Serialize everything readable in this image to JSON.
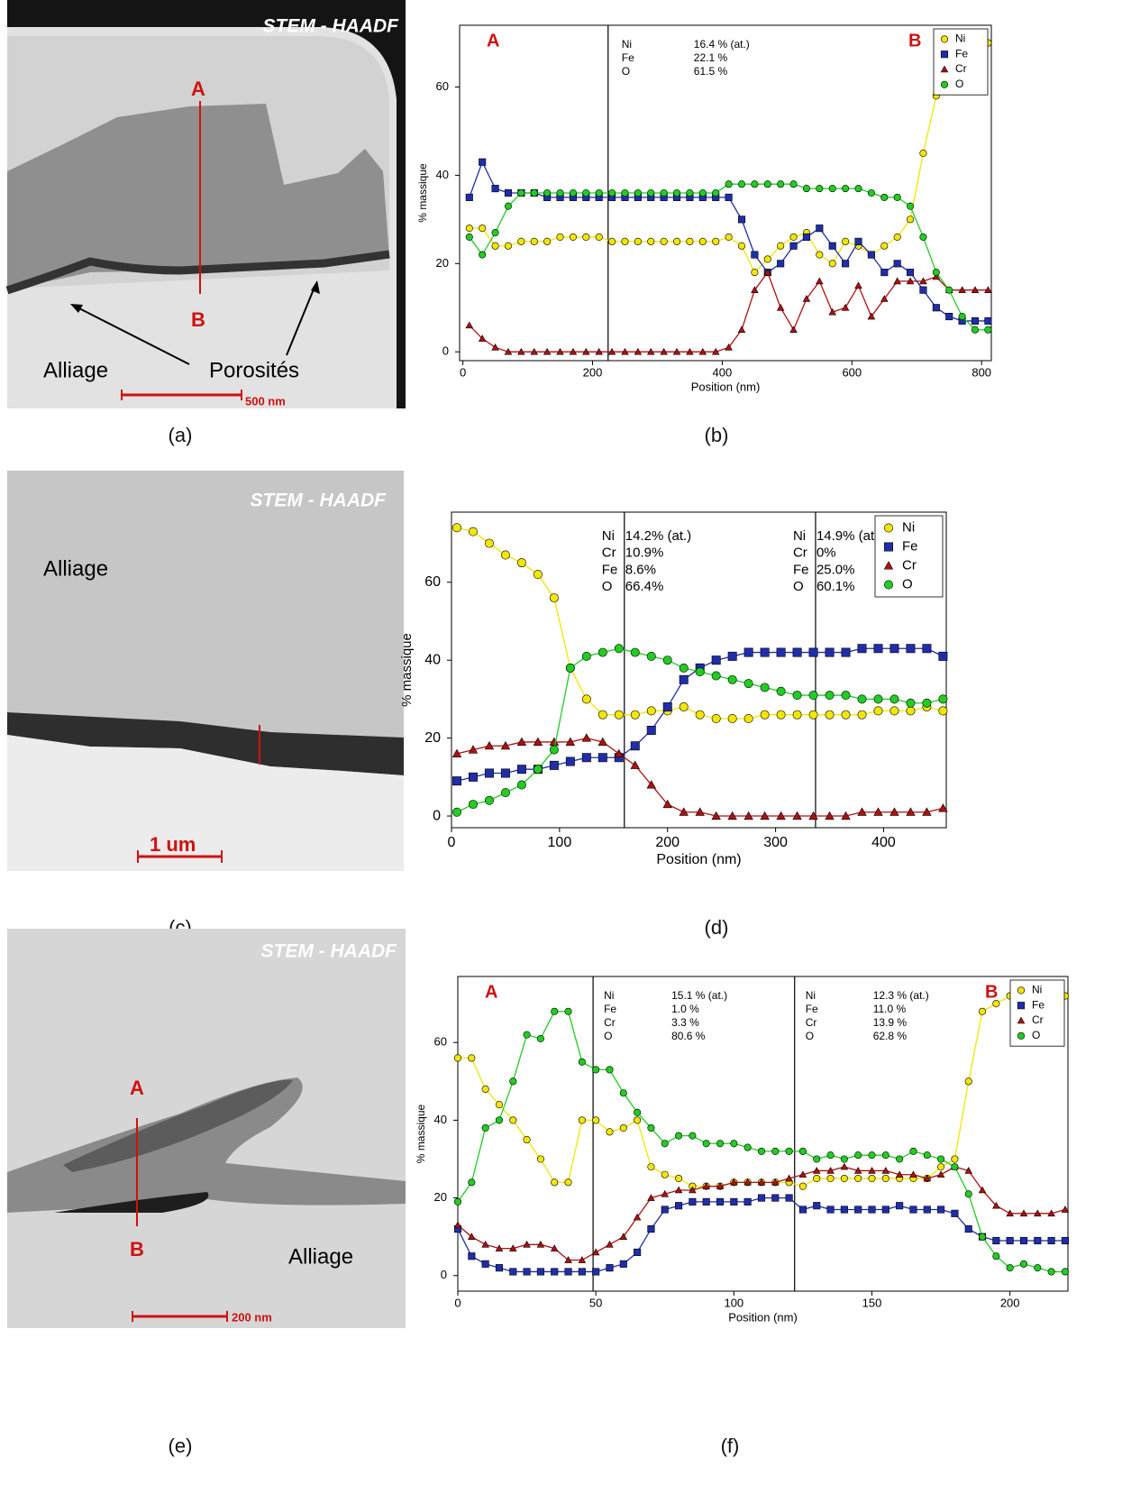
{
  "images": [
    {
      "caption": "(a)",
      "mode": "STEM - HAADF",
      "point_a": "A",
      "point_b": "B",
      "labels": [
        "Alliage",
        "Porosités"
      ],
      "scale_bar": "500 nm"
    },
    {
      "caption": "(c)",
      "mode": "STEM - HAADF",
      "labels": [
        "Alliage"
      ],
      "scale_bar": "1 um"
    },
    {
      "caption": "(e)",
      "mode": "STEM - HAADF",
      "point_a": "A",
      "point_b": "B",
      "labels": [
        "Alliage"
      ],
      "scale_bar": "200 nm"
    }
  ],
  "chart_data": [
    {
      "type": "line",
      "caption": "(b)",
      "x_label": "Position (nm)",
      "y_label": "% massique",
      "grid": false,
      "legend": "upper right",
      "end_labels": [
        "A",
        "B"
      ],
      "xlim": [
        -5,
        815
      ],
      "ylim": [
        -2,
        74
      ],
      "xticks": [
        0,
        200,
        400,
        600,
        800
      ],
      "yticks": [
        0,
        20,
        40,
        60
      ],
      "compositions": [
        {
          "x": 224,
          "lines": [
            [
              "Ni",
              "16.4 % (at.)"
            ],
            [
              "Fe",
              "22.1 %"
            ],
            [
              "O",
              "61.5 %"
            ]
          ]
        }
      ],
      "x": [
        10,
        30,
        50,
        70,
        90,
        110,
        130,
        150,
        170,
        190,
        210,
        230,
        250,
        270,
        290,
        310,
        330,
        350,
        370,
        390,
        410,
        430,
        450,
        470,
        490,
        510,
        530,
        550,
        570,
        590,
        610,
        630,
        650,
        670,
        690,
        710,
        730,
        750,
        770,
        790,
        810
      ],
      "series": [
        {
          "name": "Ni",
          "color": "#f2e600",
          "marker": "circle",
          "values": [
            28,
            28,
            24,
            24,
            25,
            25,
            25,
            26,
            26,
            26,
            26,
            25,
            25,
            25,
            25,
            25,
            25,
            25,
            25,
            25,
            26,
            24,
            18,
            21,
            24,
            26,
            27,
            22,
            20,
            25,
            24,
            22,
            24,
            26,
            30,
            45,
            58,
            65,
            69,
            70,
            70
          ]
        },
        {
          "name": "Fe",
          "color": "#1f2ea8",
          "marker": "square",
          "values": [
            35,
            43,
            37,
            36,
            36,
            36,
            35,
            35,
            35,
            35,
            35,
            35,
            35,
            35,
            35,
            35,
            35,
            35,
            35,
            35,
            35,
            30,
            22,
            18,
            20,
            24,
            26,
            28,
            24,
            20,
            25,
            22,
            18,
            20,
            18,
            14,
            10,
            8,
            7,
            7,
            7
          ]
        },
        {
          "name": "Cr",
          "color": "#b01010",
          "marker": "triangle",
          "values": [
            6,
            3,
            1,
            0,
            0,
            0,
            0,
            0,
            0,
            0,
            0,
            0,
            0,
            0,
            0,
            0,
            0,
            0,
            0,
            0,
            1,
            5,
            14,
            18,
            10,
            5,
            12,
            16,
            9,
            10,
            15,
            8,
            12,
            16,
            16,
            16,
            17,
            14,
            14,
            14,
            14
          ]
        },
        {
          "name": "O",
          "color": "#22cc22",
          "marker": "circle",
          "values": [
            26,
            22,
            27,
            33,
            36,
            36,
            36,
            36,
            36,
            36,
            36,
            36,
            36,
            36,
            36,
            36,
            36,
            36,
            36,
            36,
            38,
            38,
            38,
            38,
            38,
            38,
            37,
            37,
            37,
            37,
            37,
            36,
            35,
            35,
            33,
            26,
            18,
            14,
            8,
            5,
            5
          ]
        }
      ]
    },
    {
      "type": "line",
      "caption": "(d)",
      "x_label": "Position (nm)",
      "y_label": "% massique",
      "grid": false,
      "legend": "upper right",
      "xlim": [
        0,
        458
      ],
      "ylim": [
        -3,
        78
      ],
      "xticks": [
        0,
        100,
        200,
        300,
        400
      ],
      "yticks": [
        0,
        20,
        40,
        60
      ],
      "compositions": [
        {
          "x": 160,
          "lines": [
            [
              "Ni",
              "14.2% (at.)"
            ],
            [
              "Cr",
              "10.9%"
            ],
            [
              "Fe",
              "8.6%"
            ],
            [
              "O",
              "66.4%"
            ]
          ]
        },
        {
          "x": 337,
          "lines": [
            [
              "Ni",
              "14.9% (at.)"
            ],
            [
              "Cr",
              "0%"
            ],
            [
              "Fe",
              "25.0%"
            ],
            [
              "O",
              "60.1%"
            ]
          ]
        }
      ],
      "x": [
        5,
        20,
        35,
        50,
        65,
        80,
        95,
        110,
        125,
        140,
        155,
        170,
        185,
        200,
        215,
        230,
        245,
        260,
        275,
        290,
        305,
        320,
        335,
        350,
        365,
        380,
        395,
        410,
        425,
        440,
        455
      ],
      "series": [
        {
          "name": "Ni",
          "color": "#f2e600",
          "marker": "circle",
          "values": [
            74,
            73,
            70,
            67,
            65,
            62,
            56,
            38,
            30,
            26,
            26,
            26,
            27,
            27,
            28,
            26,
            25,
            25,
            25,
            26,
            26,
            26,
            26,
            26,
            26,
            26,
            27,
            27,
            27,
            28,
            27
          ]
        },
        {
          "name": "Fe",
          "color": "#1f2ea8",
          "marker": "square",
          "values": [
            9,
            10,
            11,
            11,
            12,
            12,
            13,
            14,
            15,
            15,
            15,
            18,
            22,
            28,
            35,
            38,
            40,
            41,
            42,
            42,
            42,
            42,
            42,
            42,
            42,
            43,
            43,
            43,
            43,
            43,
            41
          ]
        },
        {
          "name": "Cr",
          "color": "#b01010",
          "marker": "triangle",
          "values": [
            16,
            17,
            18,
            18,
            19,
            19,
            19,
            19,
            20,
            19,
            16,
            13,
            8,
            3,
            1,
            1,
            0,
            0,
            0,
            0,
            0,
            0,
            0,
            0,
            0,
            1,
            1,
            1,
            1,
            1,
            2
          ]
        },
        {
          "name": "O",
          "color": "#22cc22",
          "marker": "circle",
          "values": [
            1,
            3,
            4,
            6,
            8,
            12,
            17,
            38,
            41,
            42,
            43,
            42,
            41,
            40,
            38,
            37,
            36,
            35,
            34,
            33,
            32,
            31,
            31,
            31,
            31,
            30,
            30,
            30,
            29,
            29,
            30
          ]
        }
      ]
    },
    {
      "type": "line",
      "caption": "(f)",
      "x_label": "Position (nm)",
      "y_label": "% massique",
      "grid": false,
      "legend": "upper right",
      "end_labels": [
        "A",
        "B"
      ],
      "xlim": [
        0,
        221
      ],
      "ylim": [
        -4,
        77
      ],
      "xticks": [
        0,
        50,
        100,
        150,
        200
      ],
      "yticks": [
        0,
        20,
        40,
        60
      ],
      "compositions": [
        {
          "x": 49,
          "lines": [
            [
              "Ni",
              "15.1 % (at.)"
            ],
            [
              "Fe",
              "1.0 %"
            ],
            [
              "Cr",
              "3.3 %"
            ],
            [
              "O",
              "80.6 %"
            ]
          ]
        },
        {
          "x": 122,
          "lines": [
            [
              "Ni",
              "12.3 % (at.)"
            ],
            [
              "Fe",
              "11.0 %"
            ],
            [
              "Cr",
              "13.9 %"
            ],
            [
              "O",
              "62.8 %"
            ]
          ]
        }
      ],
      "x": [
        0,
        5,
        10,
        15,
        20,
        25,
        30,
        35,
        40,
        45,
        50,
        55,
        60,
        65,
        70,
        75,
        80,
        85,
        90,
        95,
        100,
        105,
        110,
        115,
        120,
        125,
        130,
        135,
        140,
        145,
        150,
        155,
        160,
        165,
        170,
        175,
        180,
        185,
        190,
        195,
        200,
        205,
        210,
        215,
        220
      ],
      "series": [
        {
          "name": "Ni",
          "color": "#f2e600",
          "marker": "circle",
          "values": [
            56,
            56,
            48,
            44,
            40,
            35,
            30,
            24,
            24,
            40,
            40,
            37,
            38,
            40,
            28,
            26,
            25,
            23,
            23,
            23,
            24,
            24,
            24,
            24,
            24,
            23,
            25,
            25,
            25,
            25,
            25,
            25,
            25,
            25,
            25,
            28,
            30,
            50,
            68,
            70,
            72,
            70,
            70,
            72,
            72
          ]
        },
        {
          "name": "Fe",
          "color": "#1f2ea8",
          "marker": "square",
          "values": [
            12,
            5,
            3,
            2,
            1,
            1,
            1,
            1,
            1,
            1,
            1,
            2,
            3,
            6,
            12,
            17,
            18,
            19,
            19,
            19,
            19,
            19,
            20,
            20,
            20,
            17,
            18,
            17,
            17,
            17,
            17,
            17,
            18,
            17,
            17,
            17,
            16,
            12,
            10,
            9,
            9,
            9,
            9,
            9,
            9
          ]
        },
        {
          "name": "Cr",
          "color": "#b01010",
          "marker": "triangle",
          "values": [
            13,
            10,
            8,
            7,
            7,
            8,
            8,
            7,
            4,
            4,
            6,
            8,
            10,
            15,
            20,
            21,
            22,
            22,
            23,
            23,
            24,
            24,
            24,
            24,
            25,
            26,
            27,
            27,
            28,
            27,
            27,
            27,
            26,
            26,
            25,
            26,
            28,
            27,
            22,
            18,
            16,
            16,
            16,
            16,
            17
          ]
        },
        {
          "name": "O",
          "color": "#22cc22",
          "marker": "circle",
          "values": [
            19,
            24,
            38,
            40,
            50,
            62,
            61,
            68,
            68,
            55,
            53,
            53,
            47,
            42,
            38,
            34,
            36,
            36,
            34,
            34,
            34,
            33,
            32,
            32,
            32,
            32,
            30,
            31,
            30,
            31,
            31,
            31,
            30,
            32,
            31,
            30,
            28,
            21,
            10,
            5,
            2,
            3,
            2,
            1,
            1
          ]
        }
      ]
    }
  ]
}
